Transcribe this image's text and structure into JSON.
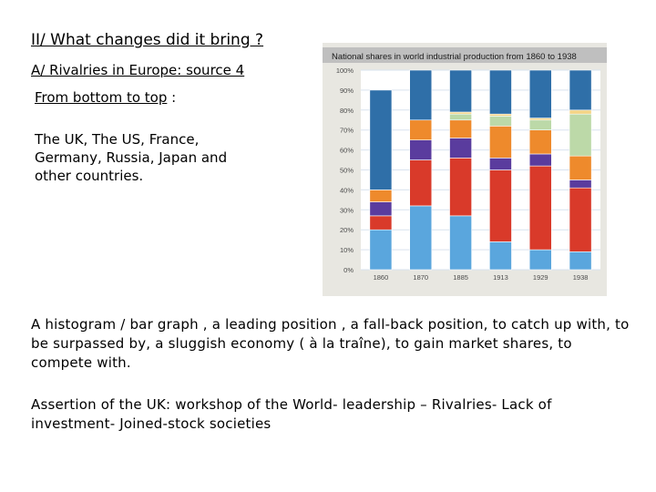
{
  "heading": "II/ What changes did it bring ?",
  "subheading": "A/ Rivalries in Europe: source 4",
  "order_label_underlined": "From bottom to top",
  "order_label_suffix": " :",
  "order_text": "The UK, The US, France, Germany, Russia, Japan and other countries.",
  "paragraph": "A histogram / bar graph , a leading position , a fall-back position, to catch up with, to be surpassed by, a sluggish economy ( à la traîne), to gain market shares, to compete with.",
  "paragraph2": "Assertion of the UK: workshop of the World- leadership – Rivalries- Lack of investment- Joined-stock societies",
  "chart_data": {
    "type": "bar",
    "stacked": true,
    "title": "National shares in world industrial production from 1860 to 1938",
    "categories": [
      "1860",
      "1870",
      "1885",
      "1913",
      "1929",
      "1938"
    ],
    "y_ticks": [
      "0%",
      "10%",
      "20%",
      "30%",
      "40%",
      "50%",
      "60%",
      "70%",
      "80%",
      "90%",
      "100%"
    ],
    "ylim": [
      0,
      100
    ],
    "grid": true,
    "series": [
      {
        "color": "#5aa6dd",
        "values": [
          20,
          32,
          27,
          14,
          10,
          9
        ]
      },
      {
        "color": "#d93a2a",
        "values": [
          7,
          23,
          29,
          36,
          42,
          32
        ]
      },
      {
        "color": "#5a3c9e",
        "values": [
          7,
          10,
          10,
          6,
          6,
          4
        ]
      },
      {
        "color": "#ee8a2c",
        "values": [
          6,
          10,
          9,
          16,
          12,
          12
        ]
      },
      {
        "color": "#bcd9a8",
        "values": [
          0,
          0,
          3,
          5,
          5,
          21
        ]
      },
      {
        "color": "#f3d486",
        "values": [
          0,
          0,
          1,
          1,
          1,
          2
        ]
      },
      {
        "color": "#2f6fa8",
        "values": [
          50,
          25,
          21,
          22,
          24,
          20
        ]
      }
    ],
    "colors": {
      "panel_bg": "#e8e7e1",
      "plot_bg": "#ffffff",
      "title_bar": "#bfbfbf",
      "grid": "#d9e3ef",
      "axis_text": "#4a4a4a"
    }
  }
}
